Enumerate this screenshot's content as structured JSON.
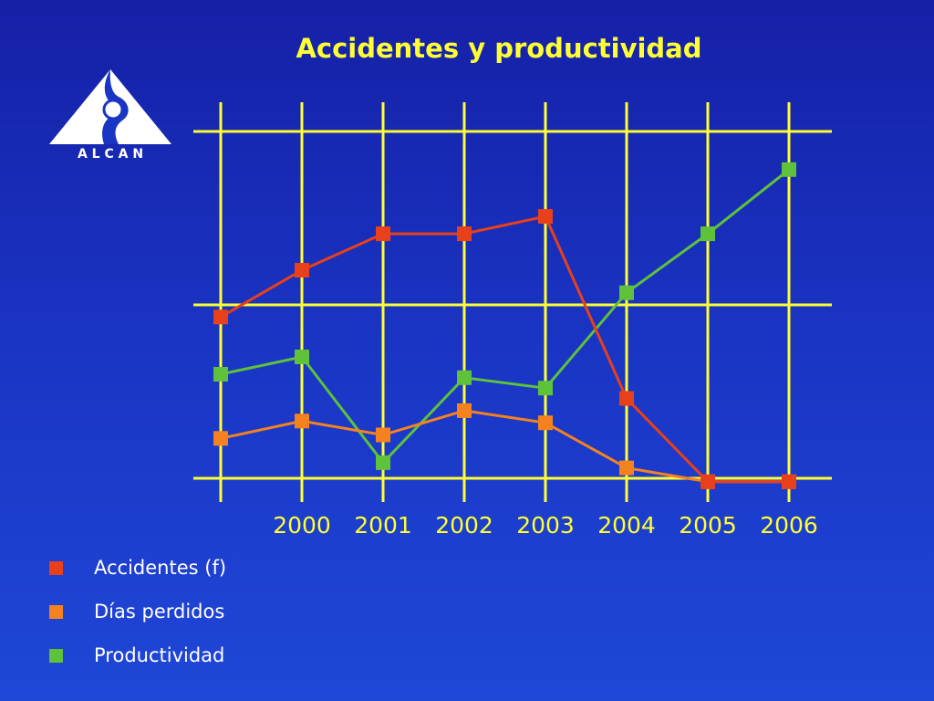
{
  "slide": {
    "title": "Accidentes y productividad",
    "logo_text": "A L C A N"
  },
  "colors": {
    "background": "#1a35c4",
    "grid": "#ffff33",
    "title": "#ffff33",
    "accidentes": "#e8401a",
    "dias_perdidos": "#f5821f",
    "productividad": "#5ec23a"
  },
  "chart_data": {
    "type": "line",
    "title": "Accidentes y productividad",
    "xlabel": "",
    "ylabel": "",
    "x": [
      "",
      "2000",
      "2001",
      "2002",
      "2003",
      "2004",
      "2005",
      "2006"
    ],
    "ylim": [
      0,
      2
    ],
    "grid": true,
    "legend_position": "bottom-left",
    "series": [
      {
        "name": "Accidentes (f)",
        "color_key": "accidentes",
        "values": [
          0.93,
          1.2,
          1.41,
          1.41,
          1.51,
          0.46,
          -0.02,
          -0.02
        ]
      },
      {
        "name": "Días perdidos",
        "color_key": "dias_perdidos",
        "values": [
          0.23,
          0.33,
          0.25,
          0.39,
          0.32,
          0.06,
          -0.02,
          -0.02
        ]
      },
      {
        "name": "Productividad",
        "color_key": "productividad",
        "values": [
          0.6,
          0.7,
          0.09,
          0.58,
          0.52,
          1.07,
          1.41,
          1.78
        ]
      }
    ]
  }
}
